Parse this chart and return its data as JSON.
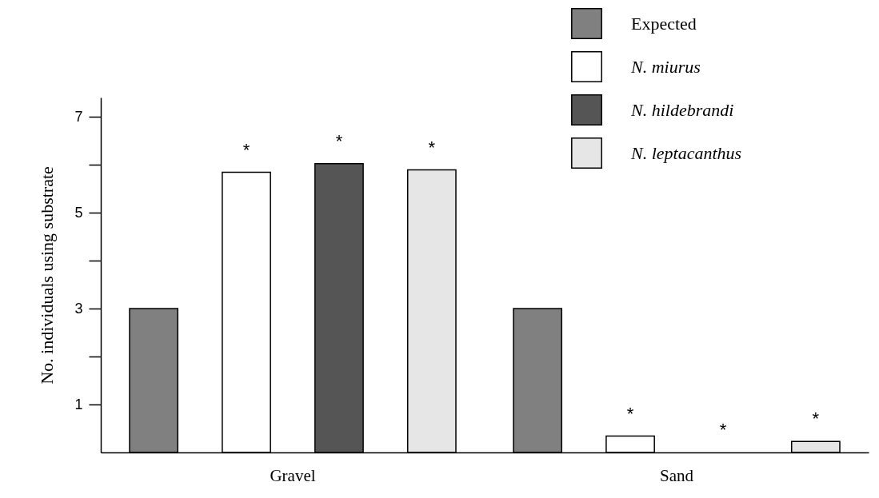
{
  "chart_data": {
    "type": "bar",
    "ylabel": "No. individuals using substrate",
    "categories": [
      "Gravel",
      "Sand"
    ],
    "series": [
      {
        "name": "Expected",
        "color": "#808080",
        "values": [
          3,
          3
        ],
        "value_labels": [
          null,
          null
        ]
      },
      {
        "name": "N. miurus",
        "color": "#ffffff",
        "values": [
          5.84,
          0.34
        ],
        "value_labels": [
          "*",
          "*"
        ]
      },
      {
        "name": "N. hildebrandi",
        "color": "#555555",
        "values": [
          6.02,
          null
        ],
        "value_labels": [
          "*",
          "*"
        ]
      },
      {
        "name": "N. leptacanthus",
        "color": "#e6e6e6",
        "values": [
          5.89,
          0.23
        ],
        "value_labels": [
          "*",
          "*"
        ]
      }
    ],
    "ylim": [
      0,
      7.4
    ],
    "yticks": [
      1,
      {
        "value": 2,
        "label": null
      },
      3,
      {
        "value": 4,
        "label": null
      },
      5,
      {
        "value": 6,
        "label": null
      },
      7
    ],
    "grid": false,
    "legend": "top right"
  }
}
